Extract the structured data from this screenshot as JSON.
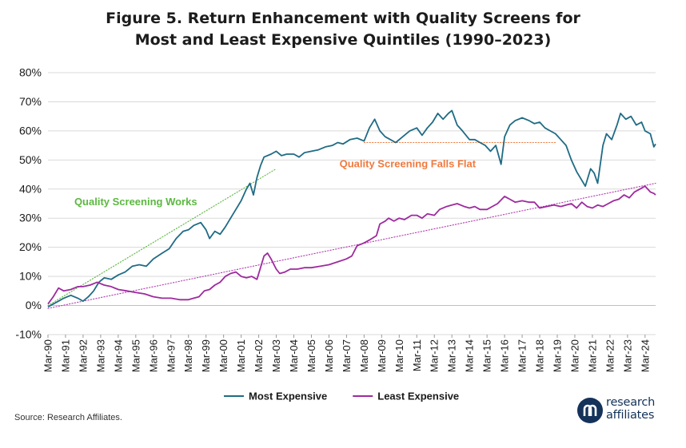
{
  "title_line1": "Figure 5. Return Enhancement with Quality Screens for",
  "title_line2": "Most and Least Expensive Quintiles (1990–2023)",
  "source": "Source: Research Affiliates.",
  "logo": {
    "line1": "research",
    "line2": "affiliates",
    "mark_icon": "research-affiliates-logo-icon"
  },
  "chart_data": {
    "type": "line",
    "yunit": "%",
    "ylim": [
      -10,
      80
    ],
    "yticks": [
      -10,
      0,
      10,
      20,
      30,
      40,
      50,
      60,
      70,
      80
    ],
    "xlim": [
      1990,
      2024.6
    ],
    "xtick_labels": [
      "Mar-90",
      "Mar-91",
      "Mar-92",
      "Mar-93",
      "Mar-94",
      "Mar-95",
      "Mar-96",
      "Mar-97",
      "Mar-98",
      "Mar-99",
      "Mar-00",
      "Mar-01",
      "Mar-02",
      "Mar-03",
      "Mar-04",
      "Mar-05",
      "Mar-06",
      "Mar-07",
      "Mar-08",
      "Mar-09",
      "Mar-10",
      "Mar-11",
      "Mar-12",
      "Mar-13",
      "Mar-14",
      "Mar-15",
      "Mar-16",
      "Mar-17",
      "Mar-18",
      "Mar-19",
      "Mar-20",
      "Mar-21",
      "Mar-22",
      "Mar-23",
      "Mar-24"
    ],
    "grid": "horizontal",
    "legend_position": "bottom-center",
    "series": [
      {
        "name": "Most Expensive",
        "color": "#1f6b85",
        "points": [
          [
            1990.0,
            -0.5
          ],
          [
            1990.3,
            0.5
          ],
          [
            1990.6,
            1.5
          ],
          [
            1990.9,
            2.5
          ],
          [
            1991.3,
            3.5
          ],
          [
            1991.7,
            2.5
          ],
          [
            1992.0,
            1.5
          ],
          [
            1992.3,
            3
          ],
          [
            1992.6,
            5
          ],
          [
            1992.9,
            8
          ],
          [
            1993.2,
            9.5
          ],
          [
            1993.6,
            9
          ],
          [
            1994.0,
            10.5
          ],
          [
            1994.4,
            11.5
          ],
          [
            1994.8,
            13.5
          ],
          [
            1995.2,
            14
          ],
          [
            1995.6,
            13.5
          ],
          [
            1996.0,
            16
          ],
          [
            1996.5,
            18
          ],
          [
            1996.9,
            19.5
          ],
          [
            1997.3,
            23
          ],
          [
            1997.7,
            25.5
          ],
          [
            1998.0,
            26
          ],
          [
            1998.3,
            27.5
          ],
          [
            1998.7,
            28.5
          ],
          [
            1999.0,
            26
          ],
          [
            1999.2,
            23
          ],
          [
            1999.5,
            25.5
          ],
          [
            1999.8,
            24.5
          ],
          [
            2000.1,
            27
          ],
          [
            2000.4,
            30
          ],
          [
            2000.7,
            33
          ],
          [
            2001.0,
            36
          ],
          [
            2001.3,
            40
          ],
          [
            2001.5,
            42
          ],
          [
            2001.7,
            38
          ],
          [
            2001.9,
            44
          ],
          [
            2002.1,
            48
          ],
          [
            2002.3,
            51
          ],
          [
            2002.7,
            52
          ],
          [
            2003.0,
            53
          ],
          [
            2003.3,
            51.5
          ],
          [
            2003.6,
            52
          ],
          [
            2004.0,
            52
          ],
          [
            2004.3,
            51
          ],
          [
            2004.6,
            52.5
          ],
          [
            2005.0,
            53
          ],
          [
            2005.4,
            53.5
          ],
          [
            2005.8,
            54.5
          ],
          [
            2006.2,
            55
          ],
          [
            2006.5,
            56
          ],
          [
            2006.8,
            55.5
          ],
          [
            2007.2,
            57
          ],
          [
            2007.6,
            57.5
          ],
          [
            2008.0,
            56.5
          ],
          [
            2008.3,
            61
          ],
          [
            2008.6,
            64
          ],
          [
            2008.9,
            60
          ],
          [
            2009.2,
            58
          ],
          [
            2009.5,
            57
          ],
          [
            2009.8,
            56
          ],
          [
            2010.2,
            58
          ],
          [
            2010.6,
            60
          ],
          [
            2011.0,
            61
          ],
          [
            2011.3,
            58.5
          ],
          [
            2011.6,
            61
          ],
          [
            2011.9,
            63
          ],
          [
            2012.2,
            66
          ],
          [
            2012.5,
            64
          ],
          [
            2012.8,
            66
          ],
          [
            2013.0,
            67
          ],
          [
            2013.3,
            62
          ],
          [
            2013.6,
            60
          ],
          [
            2014.0,
            57
          ],
          [
            2014.3,
            57
          ],
          [
            2014.6,
            56
          ],
          [
            2014.9,
            55
          ],
          [
            2015.2,
            53
          ],
          [
            2015.5,
            55
          ],
          [
            2015.8,
            48.5
          ],
          [
            2016.0,
            58
          ],
          [
            2016.3,
            62
          ],
          [
            2016.6,
            63.5
          ],
          [
            2017.0,
            64.5
          ],
          [
            2017.4,
            63.5
          ],
          [
            2017.7,
            62.5
          ],
          [
            2018.0,
            63
          ],
          [
            2018.3,
            61
          ],
          [
            2018.6,
            60
          ],
          [
            2018.9,
            59
          ],
          [
            2019.2,
            57
          ],
          [
            2019.5,
            55
          ],
          [
            2019.8,
            50
          ],
          [
            2020.1,
            46
          ],
          [
            2020.4,
            43
          ],
          [
            2020.6,
            41
          ],
          [
            2020.9,
            47
          ],
          [
            2021.1,
            45.5
          ],
          [
            2021.3,
            42
          ],
          [
            2021.6,
            55
          ],
          [
            2021.8,
            59
          ],
          [
            2022.1,
            57
          ],
          [
            2022.4,
            62
          ],
          [
            2022.6,
            66
          ],
          [
            2022.9,
            64
          ],
          [
            2023.2,
            65
          ],
          [
            2023.5,
            62
          ],
          [
            2023.8,
            63
          ],
          [
            2024.0,
            60
          ],
          [
            2024.3,
            59
          ],
          [
            2024.5,
            54.5
          ],
          [
            2024.6,
            55.5
          ]
        ]
      },
      {
        "name": "Least Expensive",
        "color": "#9e2a9e",
        "points": [
          [
            1990.0,
            0.5
          ],
          [
            1990.3,
            3
          ],
          [
            1990.6,
            6
          ],
          [
            1990.9,
            5
          ],
          [
            1991.3,
            5.5
          ],
          [
            1991.7,
            6.5
          ],
          [
            1992.0,
            6.5
          ],
          [
            1992.4,
            7
          ],
          [
            1992.8,
            8
          ],
          [
            1993.2,
            7
          ],
          [
            1993.6,
            6.5
          ],
          [
            1994.0,
            5.5
          ],
          [
            1994.5,
            5
          ],
          [
            1995.0,
            4.5
          ],
          [
            1995.5,
            4
          ],
          [
            1996.0,
            3
          ],
          [
            1996.5,
            2.5
          ],
          [
            1997.0,
            2.5
          ],
          [
            1997.5,
            2
          ],
          [
            1998.0,
            2
          ],
          [
            1998.3,
            2.5
          ],
          [
            1998.6,
            3
          ],
          [
            1998.9,
            5
          ],
          [
            1999.2,
            5.5
          ],
          [
            1999.5,
            7
          ],
          [
            1999.8,
            8
          ],
          [
            2000.1,
            10
          ],
          [
            2000.4,
            11
          ],
          [
            2000.7,
            11.5
          ],
          [
            2001.0,
            10
          ],
          [
            2001.3,
            9.5
          ],
          [
            2001.6,
            10
          ],
          [
            2001.9,
            9
          ],
          [
            2002.1,
            13
          ],
          [
            2002.3,
            17
          ],
          [
            2002.5,
            18
          ],
          [
            2002.7,
            16
          ],
          [
            2003.0,
            12.5
          ],
          [
            2003.2,
            11
          ],
          [
            2003.5,
            11.5
          ],
          [
            2003.8,
            12.5
          ],
          [
            2004.2,
            12.5
          ],
          [
            2004.6,
            13
          ],
          [
            2005.0,
            13
          ],
          [
            2005.5,
            13.5
          ],
          [
            2006.0,
            14
          ],
          [
            2006.5,
            15
          ],
          [
            2007.0,
            16
          ],
          [
            2007.3,
            17
          ],
          [
            2007.6,
            20.5
          ],
          [
            2008.0,
            21.5
          ],
          [
            2008.3,
            22.5
          ],
          [
            2008.7,
            24
          ],
          [
            2008.9,
            28
          ],
          [
            2009.2,
            29
          ],
          [
            2009.4,
            30
          ],
          [
            2009.7,
            29
          ],
          [
            2010.0,
            30
          ],
          [
            2010.3,
            29.5
          ],
          [
            2010.7,
            31
          ],
          [
            2011.0,
            31
          ],
          [
            2011.3,
            30
          ],
          [
            2011.6,
            31.5
          ],
          [
            2012.0,
            31
          ],
          [
            2012.3,
            33
          ],
          [
            2012.7,
            34
          ],
          [
            2013.0,
            34.5
          ],
          [
            2013.3,
            35
          ],
          [
            2013.7,
            34
          ],
          [
            2014.0,
            33.5
          ],
          [
            2014.3,
            34
          ],
          [
            2014.6,
            33
          ],
          [
            2015.0,
            33
          ],
          [
            2015.3,
            34
          ],
          [
            2015.6,
            35
          ],
          [
            2016.0,
            37.5
          ],
          [
            2016.3,
            36.5
          ],
          [
            2016.6,
            35.5
          ],
          [
            2017.0,
            36
          ],
          [
            2017.4,
            35.5
          ],
          [
            2017.7,
            35.5
          ],
          [
            2018.0,
            33.5
          ],
          [
            2018.4,
            34
          ],
          [
            2018.8,
            34.5
          ],
          [
            2019.2,
            34
          ],
          [
            2019.5,
            34.5
          ],
          [
            2019.8,
            35
          ],
          [
            2020.1,
            33.5
          ],
          [
            2020.4,
            35.5
          ],
          [
            2020.7,
            34
          ],
          [
            2021.0,
            33.5
          ],
          [
            2021.3,
            34.5
          ],
          [
            2021.6,
            34
          ],
          [
            2021.9,
            35
          ],
          [
            2022.2,
            36
          ],
          [
            2022.5,
            36.5
          ],
          [
            2022.8,
            38
          ],
          [
            2023.1,
            37
          ],
          [
            2023.4,
            39
          ],
          [
            2023.7,
            40
          ],
          [
            2024.0,
            41
          ],
          [
            2024.3,
            39
          ],
          [
            2024.5,
            38.5
          ],
          [
            2024.6,
            38
          ]
        ]
      }
    ],
    "trendlines": [
      {
        "color": "#5cb841",
        "style": "dotted",
        "points": [
          [
            1990.0,
            0
          ],
          [
            2003.0,
            47
          ]
        ]
      },
      {
        "color": "#b23bb2",
        "style": "dotted",
        "points": [
          [
            1990.0,
            -1
          ],
          [
            2024.6,
            42
          ]
        ]
      },
      {
        "color": "#f07a3e",
        "style": "dotted",
        "points": [
          [
            2008.0,
            56
          ],
          [
            2018.9,
            56
          ]
        ]
      }
    ],
    "annotations": [
      {
        "text": "Quality Screening Works",
        "color": "#5cb841",
        "x": 1991.5,
        "y": 34.5
      },
      {
        "text": "Quality Screening Falls Flat",
        "color": "#f07a3e",
        "x": 2006.6,
        "y": 47.5
      }
    ]
  }
}
